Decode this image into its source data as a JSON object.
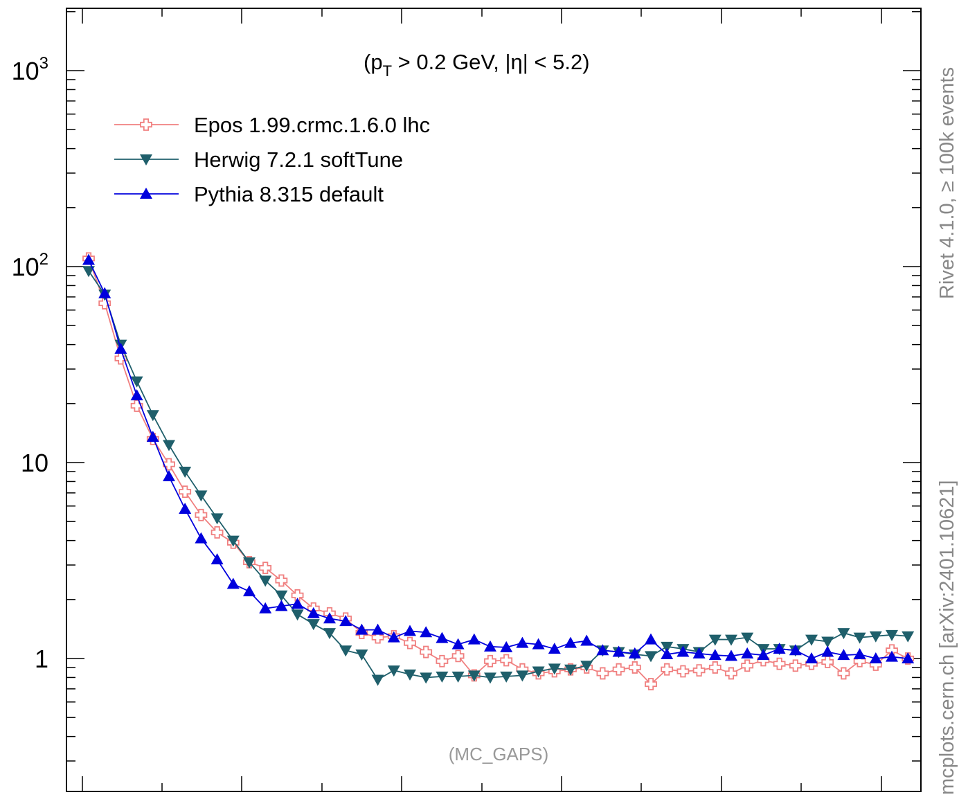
{
  "chart_data": {
    "type": "line",
    "y_scale": "log",
    "ylim": [
      0.3,
      2000
    ],
    "xlim": [
      0,
      52
    ],
    "x": [
      1,
      2,
      3,
      4,
      5,
      6,
      7,
      8,
      9,
      10,
      11,
      12,
      13,
      14,
      15,
      16,
      17,
      18,
      19,
      20,
      21,
      22,
      23,
      24,
      25,
      26,
      27,
      28,
      29,
      30,
      31,
      32,
      33,
      34,
      35,
      36,
      37,
      38,
      39,
      40,
      41,
      42,
      43,
      44,
      45,
      46,
      47,
      48,
      49,
      50,
      51,
      52
    ],
    "y_tick_labels": [
      {
        "value": 1000,
        "base": "10",
        "exp": "3"
      },
      {
        "value": 100,
        "base": "10",
        "exp": "2"
      },
      {
        "value": 10,
        "base": "10",
        "exp": ""
      },
      {
        "value": 1,
        "base": "1",
        "exp": ""
      }
    ],
    "annotation": {
      "open": "(p",
      "sub": "T",
      "rest": " > 0.2 GeV, |η| < 5.2)"
    },
    "watermark": "(MC_GAPS)",
    "series": [
      {
        "name": "Epos 1.99.crmc.1.6.0 lhc",
        "color": "#f08080",
        "marker": "cross-open",
        "values": [
          110,
          65,
          34,
          19.5,
          13.2,
          9.8,
          7.1,
          5.4,
          4.4,
          3.9,
          3.1,
          2.9,
          2.5,
          2.1,
          1.8,
          1.7,
          1.6,
          1.35,
          1.28,
          1.3,
          1.2,
          1.08,
          0.97,
          1.03,
          0.82,
          0.97,
          0.98,
          0.88,
          0.84,
          0.86,
          0.88,
          0.9,
          0.84,
          0.88,
          0.9,
          0.74,
          0.88,
          0.86,
          0.87,
          0.9,
          0.84,
          0.92,
          0.98,
          0.94,
          0.92,
          0.94,
          0.96,
          0.84,
          0.97,
          0.93,
          1.1,
          1.0
        ]
      },
      {
        "name": "Herwig 7.2.1 softTune",
        "color": "#1f5f6b",
        "marker": "triangle-down",
        "values": [
          95,
          72,
          40,
          26,
          17.5,
          12.3,
          9.0,
          6.8,
          5.2,
          4.0,
          3.1,
          2.5,
          2.1,
          1.68,
          1.5,
          1.35,
          1.1,
          1.05,
          0.78,
          0.87,
          0.83,
          0.8,
          0.81,
          0.81,
          0.82,
          0.8,
          0.81,
          0.82,
          0.86,
          0.89,
          0.88,
          0.92,
          1.1,
          1.08,
          1.05,
          1.03,
          1.15,
          1.12,
          1.08,
          1.25,
          1.25,
          1.28,
          1.12,
          1.12,
          1.1,
          1.25,
          1.22,
          1.35,
          1.28,
          1.3,
          1.32,
          1.3
        ]
      },
      {
        "name": "Pythia 8.315 default",
        "color": "#0000dd",
        "marker": "triangle-up",
        "values": [
          108,
          73,
          38,
          22,
          13.5,
          8.5,
          5.8,
          4.1,
          3.2,
          2.4,
          2.2,
          1.8,
          1.85,
          1.9,
          1.7,
          1.6,
          1.55,
          1.4,
          1.4,
          1.28,
          1.38,
          1.36,
          1.27,
          1.18,
          1.25,
          1.15,
          1.14,
          1.2,
          1.18,
          1.12,
          1.2,
          1.23,
          1.1,
          1.08,
          1.06,
          1.25,
          1.05,
          1.08,
          1.06,
          1.04,
          1.03,
          1.06,
          1.04,
          1.12,
          1.1,
          1.0,
          1.08,
          1.04,
          1.05,
          1.0,
          1.02,
          1.0
        ]
      }
    ]
  },
  "side_text": {
    "rivet": "Rivet 4.1.0, ≥ 100k events",
    "mcplots": "mcplots.cern.ch [arXiv:2401.10621]"
  }
}
